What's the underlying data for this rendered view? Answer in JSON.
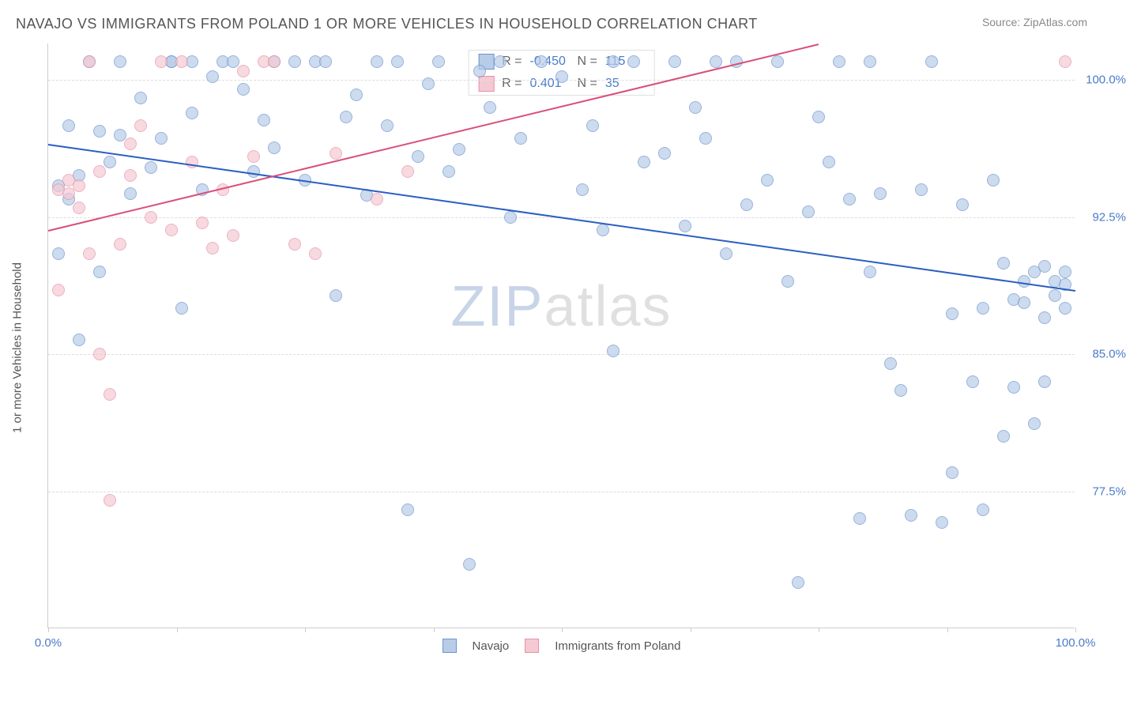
{
  "title": "NAVAJO VS IMMIGRANTS FROM POLAND 1 OR MORE VEHICLES IN HOUSEHOLD CORRELATION CHART",
  "source": "Source: ZipAtlas.com",
  "ylabel": "1 or more Vehicles in Household",
  "watermark_a": "ZIP",
  "watermark_b": "atlas",
  "chart": {
    "type": "scatter",
    "xlim": [
      0,
      100
    ],
    "ylim": [
      70,
      102
    ],
    "y_ticks": [
      77.5,
      85.0,
      92.5,
      100.0
    ],
    "y_tick_labels": [
      "77.5%",
      "85.0%",
      "92.5%",
      "100.0%"
    ],
    "x_ticks": [
      0,
      12.5,
      25,
      37.5,
      50,
      62.5,
      75,
      87.5,
      100
    ],
    "x_min_label": "0.0%",
    "x_max_label": "100.0%",
    "xlabel_color": "#4a7bc8",
    "ylabel_color": "#4a7bc8",
    "grid_color": "#dddddd",
    "background_color": "#ffffff",
    "point_radius": 8,
    "series": [
      {
        "name": "Navajo",
        "fill": "#b8cce8",
        "stroke": "#6a94cf",
        "opacity": 0.7,
        "reg_color": "#2a5fc0",
        "R": "-0.450",
        "N": "115",
        "reg_line": {
          "x1": 0,
          "y1": 96.5,
          "x2": 100,
          "y2": 88.5
        },
        "points": [
          [
            1,
            90.5
          ],
          [
            1,
            94.2
          ],
          [
            2,
            93.5
          ],
          [
            2,
            97.5
          ],
          [
            3,
            85.8
          ],
          [
            3,
            94.8
          ],
          [
            4,
            101
          ],
          [
            5,
            89.5
          ],
          [
            5,
            97.2
          ],
          [
            6,
            95.5
          ],
          [
            7,
            101
          ],
          [
            7,
            97.0
          ],
          [
            8,
            93.8
          ],
          [
            9,
            99.0
          ],
          [
            10,
            95.2
          ],
          [
            11,
            96.8
          ],
          [
            12,
            101
          ],
          [
            12,
            101
          ],
          [
            13,
            87.5
          ],
          [
            14,
            98.2
          ],
          [
            14,
            101
          ],
          [
            15,
            94.0
          ],
          [
            16,
            100.2
          ],
          [
            17,
            101
          ],
          [
            18,
            101
          ],
          [
            19,
            99.5
          ],
          [
            20,
            95.0
          ],
          [
            21,
            97.8
          ],
          [
            22,
            101
          ],
          [
            22,
            96.3
          ],
          [
            24,
            101
          ],
          [
            25,
            94.5
          ],
          [
            26,
            101
          ],
          [
            27,
            101
          ],
          [
            28,
            88.2
          ],
          [
            29,
            98.0
          ],
          [
            30,
            99.2
          ],
          [
            31,
            93.7
          ],
          [
            32,
            101
          ],
          [
            33,
            97.5
          ],
          [
            34,
            101
          ],
          [
            35,
            76.5
          ],
          [
            36,
            95.8
          ],
          [
            37,
            99.8
          ],
          [
            38,
            101
          ],
          [
            39,
            95.0
          ],
          [
            40,
            96.2
          ],
          [
            41,
            73.5
          ],
          [
            42,
            100.5
          ],
          [
            43,
            98.5
          ],
          [
            44,
            101
          ],
          [
            45,
            92.5
          ],
          [
            46,
            96.8
          ],
          [
            48,
            101
          ],
          [
            50,
            100.2
          ],
          [
            52,
            94.0
          ],
          [
            53,
            97.5
          ],
          [
            54,
            91.8
          ],
          [
            55,
            85.2
          ],
          [
            55,
            101
          ],
          [
            57,
            101
          ],
          [
            58,
            95.5
          ],
          [
            60,
            96.0
          ],
          [
            61,
            101
          ],
          [
            62,
            92.0
          ],
          [
            63,
            98.5
          ],
          [
            64,
            96.8
          ],
          [
            65,
            101
          ],
          [
            66,
            90.5
          ],
          [
            67,
            101
          ],
          [
            68,
            93.2
          ],
          [
            70,
            94.5
          ],
          [
            71,
            101
          ],
          [
            72,
            89.0
          ],
          [
            73,
            72.5
          ],
          [
            74,
            92.8
          ],
          [
            75,
            98.0
          ],
          [
            76,
            95.5
          ],
          [
            77,
            101
          ],
          [
            78,
            93.5
          ],
          [
            79,
            76.0
          ],
          [
            80,
            89.5
          ],
          [
            80,
            101
          ],
          [
            81,
            93.8
          ],
          [
            82,
            84.5
          ],
          [
            83,
            83.0
          ],
          [
            84,
            76.2
          ],
          [
            85,
            94.0
          ],
          [
            86,
            101
          ],
          [
            87,
            75.8
          ],
          [
            88,
            78.5
          ],
          [
            88,
            87.2
          ],
          [
            89,
            93.2
          ],
          [
            90,
            83.5
          ],
          [
            91,
            87.5
          ],
          [
            91,
            76.5
          ],
          [
            92,
            94.5
          ],
          [
            93,
            90.0
          ],
          [
            93,
            80.5
          ],
          [
            94,
            88.0
          ],
          [
            94,
            83.2
          ],
          [
            95,
            89.0
          ],
          [
            95,
            87.8
          ],
          [
            96,
            89.5
          ],
          [
            96,
            81.2
          ],
          [
            97,
            89.8
          ],
          [
            97,
            87.0
          ],
          [
            97,
            83.5
          ],
          [
            98,
            89.0
          ],
          [
            98,
            88.2
          ],
          [
            99,
            88.8
          ],
          [
            99,
            89.5
          ],
          [
            99,
            87.5
          ]
        ]
      },
      {
        "name": "Immigrants from Poland",
        "fill": "#f5c9d4",
        "stroke": "#e891a8",
        "opacity": 0.7,
        "reg_color": "#d94f78",
        "R": "0.401",
        "N": "35",
        "reg_line": {
          "x1": 0,
          "y1": 91.8,
          "x2": 75,
          "y2": 102
        },
        "points": [
          [
            1,
            94.0
          ],
          [
            1,
            88.5
          ],
          [
            2,
            94.5
          ],
          [
            2,
            93.8
          ],
          [
            3,
            94.2
          ],
          [
            3,
            93.0
          ],
          [
            4,
            101
          ],
          [
            4,
            90.5
          ],
          [
            5,
            95.0
          ],
          [
            5,
            85.0
          ],
          [
            6,
            77.0
          ],
          [
            6,
            82.8
          ],
          [
            7,
            91.0
          ],
          [
            8,
            94.8
          ],
          [
            8,
            96.5
          ],
          [
            9,
            97.5
          ],
          [
            10,
            92.5
          ],
          [
            11,
            101
          ],
          [
            12,
            91.8
          ],
          [
            13,
            101
          ],
          [
            14,
            95.5
          ],
          [
            15,
            92.2
          ],
          [
            16,
            90.8
          ],
          [
            17,
            94.0
          ],
          [
            18,
            91.5
          ],
          [
            19,
            100.5
          ],
          [
            20,
            95.8
          ],
          [
            21,
            101
          ],
          [
            22,
            101
          ],
          [
            24,
            91.0
          ],
          [
            26,
            90.5
          ],
          [
            28,
            96.0
          ],
          [
            32,
            93.5
          ],
          [
            35,
            95.0
          ],
          [
            99,
            101
          ]
        ]
      }
    ]
  },
  "legend": {
    "items": [
      {
        "label": "Navajo",
        "fill": "#b8cce8",
        "stroke": "#6a94cf"
      },
      {
        "label": "Immigrants from Poland",
        "fill": "#f5c9d4",
        "stroke": "#e891a8"
      }
    ]
  }
}
